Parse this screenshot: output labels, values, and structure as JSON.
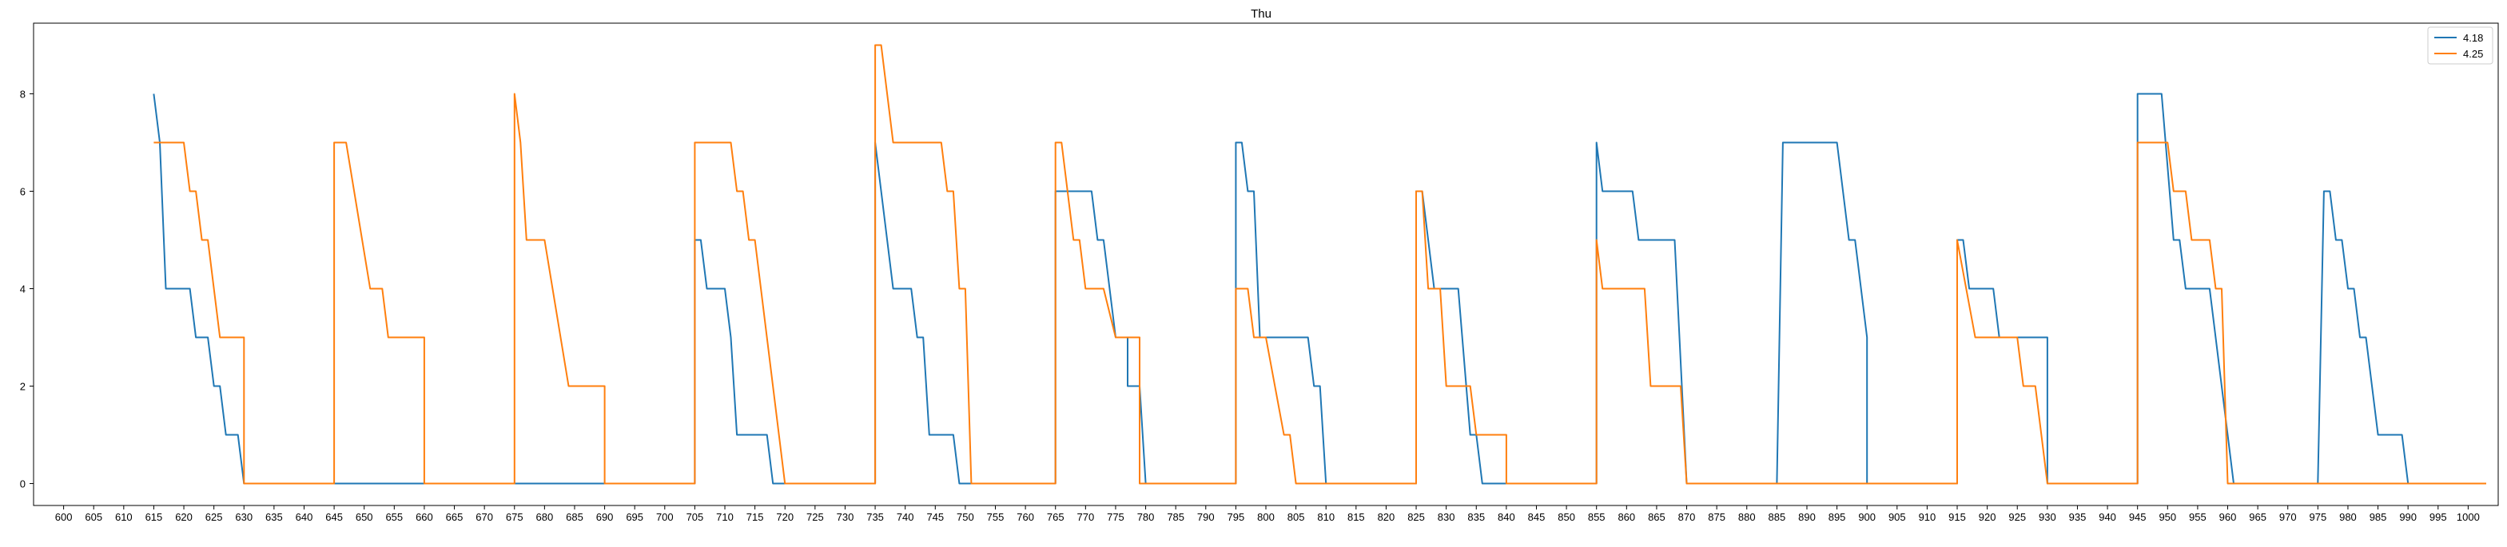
{
  "chart_data": {
    "type": "line",
    "title": "Thu",
    "xlabel": "",
    "ylabel": "",
    "xlim": [
      595,
      1005
    ],
    "ylim": [
      -0.45,
      9.45
    ],
    "x_ticks": [
      600,
      605,
      610,
      615,
      620,
      625,
      630,
      635,
      640,
      645,
      650,
      655,
      660,
      665,
      670,
      675,
      680,
      685,
      690,
      695,
      700,
      705,
      710,
      715,
      720,
      725,
      730,
      735,
      740,
      745,
      750,
      755,
      760,
      765,
      770,
      775,
      780,
      785,
      790,
      795,
      800,
      805,
      810,
      815,
      820,
      825,
      830,
      835,
      840,
      845,
      850,
      855,
      860,
      865,
      870,
      875,
      880,
      885,
      890,
      895,
      900,
      905,
      910,
      915,
      920,
      925,
      930,
      935,
      940,
      945,
      950,
      955,
      960,
      965,
      970,
      975,
      980,
      985,
      990,
      995,
      1000
    ],
    "y_ticks": [
      0,
      2,
      4,
      6,
      8
    ],
    "legend_position": "top-right",
    "grid": false,
    "series": [
      {
        "name": "4.18",
        "color": "#1f77b4",
        "points": [
          [
            615,
            8
          ],
          [
            616,
            7
          ],
          [
            617,
            4
          ],
          [
            621,
            4
          ],
          [
            622,
            3
          ],
          [
            624,
            3
          ],
          [
            625,
            2
          ],
          [
            626,
            2
          ],
          [
            627,
            1
          ],
          [
            629,
            1
          ],
          [
            630,
            0
          ],
          [
            705,
            0
          ],
          [
            705,
            5
          ],
          [
            706,
            5
          ],
          [
            707,
            4
          ],
          [
            710,
            4
          ],
          [
            711,
            3
          ],
          [
            712,
            1
          ],
          [
            717,
            1
          ],
          [
            718,
            0
          ],
          [
            735,
            0
          ],
          [
            735,
            7
          ],
          [
            738,
            4
          ],
          [
            741,
            4
          ],
          [
            742,
            3
          ],
          [
            743,
            3
          ],
          [
            744,
            1
          ],
          [
            748,
            1
          ],
          [
            749,
            0
          ],
          [
            765,
            0
          ],
          [
            765,
            6
          ],
          [
            771,
            6
          ],
          [
            772,
            5
          ],
          [
            773,
            5
          ],
          [
            775,
            3
          ],
          [
            777,
            3
          ],
          [
            777,
            2
          ],
          [
            779,
            2
          ],
          [
            780,
            0
          ],
          [
            795,
            0
          ],
          [
            795,
            7
          ],
          [
            796,
            7
          ],
          [
            797,
            6
          ],
          [
            798,
            6
          ],
          [
            799,
            3
          ],
          [
            807,
            3
          ],
          [
            808,
            2
          ],
          [
            809,
            2
          ],
          [
            810,
            0
          ],
          [
            825,
            0
          ],
          [
            825,
            6
          ],
          [
            826,
            6
          ],
          [
            828,
            4
          ],
          [
            832,
            4
          ],
          [
            834,
            1
          ],
          [
            835,
            1
          ],
          [
            836,
            0
          ],
          [
            855,
            0
          ],
          [
            855,
            7
          ],
          [
            856,
            6
          ],
          [
            861,
            6
          ],
          [
            862,
            5
          ],
          [
            868,
            5
          ],
          [
            870,
            0
          ],
          [
            885,
            0
          ],
          [
            886,
            7
          ],
          [
            895,
            7
          ],
          [
            897,
            5
          ],
          [
            898,
            5
          ],
          [
            900,
            3
          ],
          [
            900,
            0
          ],
          [
            915,
            0
          ],
          [
            915,
            5
          ],
          [
            916,
            5
          ],
          [
            917,
            4
          ],
          [
            921,
            4
          ],
          [
            922,
            3
          ],
          [
            930,
            3
          ],
          [
            930,
            0
          ],
          [
            945,
            0
          ],
          [
            945,
            8
          ],
          [
            949,
            8
          ],
          [
            951,
            5
          ],
          [
            952,
            5
          ],
          [
            953,
            4
          ],
          [
            957,
            4
          ],
          [
            961,
            0
          ],
          [
            975,
            0
          ],
          [
            976,
            6
          ],
          [
            977,
            6
          ],
          [
            978,
            5
          ],
          [
            979,
            5
          ],
          [
            980,
            4
          ],
          [
            981,
            4
          ],
          [
            982,
            3
          ],
          [
            983,
            3
          ],
          [
            985,
            1
          ],
          [
            989,
            1
          ],
          [
            990,
            0
          ],
          [
            1003,
            0
          ]
        ]
      },
      {
        "name": "4.25",
        "color": "#ff7f0e",
        "points": [
          [
            615,
            7
          ],
          [
            620,
            7
          ],
          [
            621,
            6
          ],
          [
            622,
            6
          ],
          [
            623,
            5
          ],
          [
            624,
            5
          ],
          [
            626,
            3
          ],
          [
            630,
            3
          ],
          [
            630,
            0
          ],
          [
            645,
            0
          ],
          [
            645,
            7
          ],
          [
            647,
            7
          ],
          [
            651,
            4
          ],
          [
            653,
            4
          ],
          [
            654,
            3
          ],
          [
            660,
            3
          ],
          [
            660,
            0
          ],
          [
            675,
            0
          ],
          [
            675,
            8
          ],
          [
            676,
            7
          ],
          [
            677,
            5
          ],
          [
            680,
            5
          ],
          [
            684,
            2
          ],
          [
            690,
            2
          ],
          [
            690,
            0
          ],
          [
            705,
            0
          ],
          [
            705,
            7
          ],
          [
            711,
            7
          ],
          [
            712,
            6
          ],
          [
            713,
            6
          ],
          [
            714,
            5
          ],
          [
            715,
            5
          ],
          [
            720,
            0
          ],
          [
            735,
            0
          ],
          [
            735,
            9
          ],
          [
            736,
            9
          ],
          [
            738,
            7
          ],
          [
            746,
            7
          ],
          [
            747,
            6
          ],
          [
            748,
            6
          ],
          [
            749,
            4
          ],
          [
            750,
            4
          ],
          [
            751,
            0
          ],
          [
            765,
            0
          ],
          [
            765,
            7
          ],
          [
            766,
            7
          ],
          [
            768,
            5
          ],
          [
            769,
            5
          ],
          [
            770,
            4
          ],
          [
            773,
            4
          ],
          [
            775,
            3
          ],
          [
            779,
            3
          ],
          [
            779,
            0
          ],
          [
            795,
            0
          ],
          [
            795,
            4
          ],
          [
            797,
            4
          ],
          [
            798,
            3
          ],
          [
            800,
            3
          ],
          [
            803,
            1
          ],
          [
            804,
            1
          ],
          [
            805,
            0
          ],
          [
            825,
            0
          ],
          [
            825,
            6
          ],
          [
            826,
            6
          ],
          [
            827,
            4
          ],
          [
            829,
            4
          ],
          [
            830,
            2
          ],
          [
            834,
            2
          ],
          [
            835,
            1
          ],
          [
            840,
            1
          ],
          [
            840,
            0
          ],
          [
            855,
            0
          ],
          [
            855,
            5
          ],
          [
            856,
            4
          ],
          [
            863,
            4
          ],
          [
            864,
            2
          ],
          [
            869,
            2
          ],
          [
            870,
            0
          ],
          [
            915,
            0
          ],
          [
            915,
            5
          ],
          [
            918,
            3
          ],
          [
            925,
            3
          ],
          [
            926,
            2
          ],
          [
            928,
            2
          ],
          [
            930,
            0
          ],
          [
            945,
            0
          ],
          [
            945,
            7
          ],
          [
            950,
            7
          ],
          [
            951,
            6
          ],
          [
            953,
            6
          ],
          [
            954,
            5
          ],
          [
            957,
            5
          ],
          [
            958,
            4
          ],
          [
            959,
            4
          ],
          [
            960,
            0
          ],
          [
            1003,
            0
          ]
        ]
      }
    ]
  }
}
